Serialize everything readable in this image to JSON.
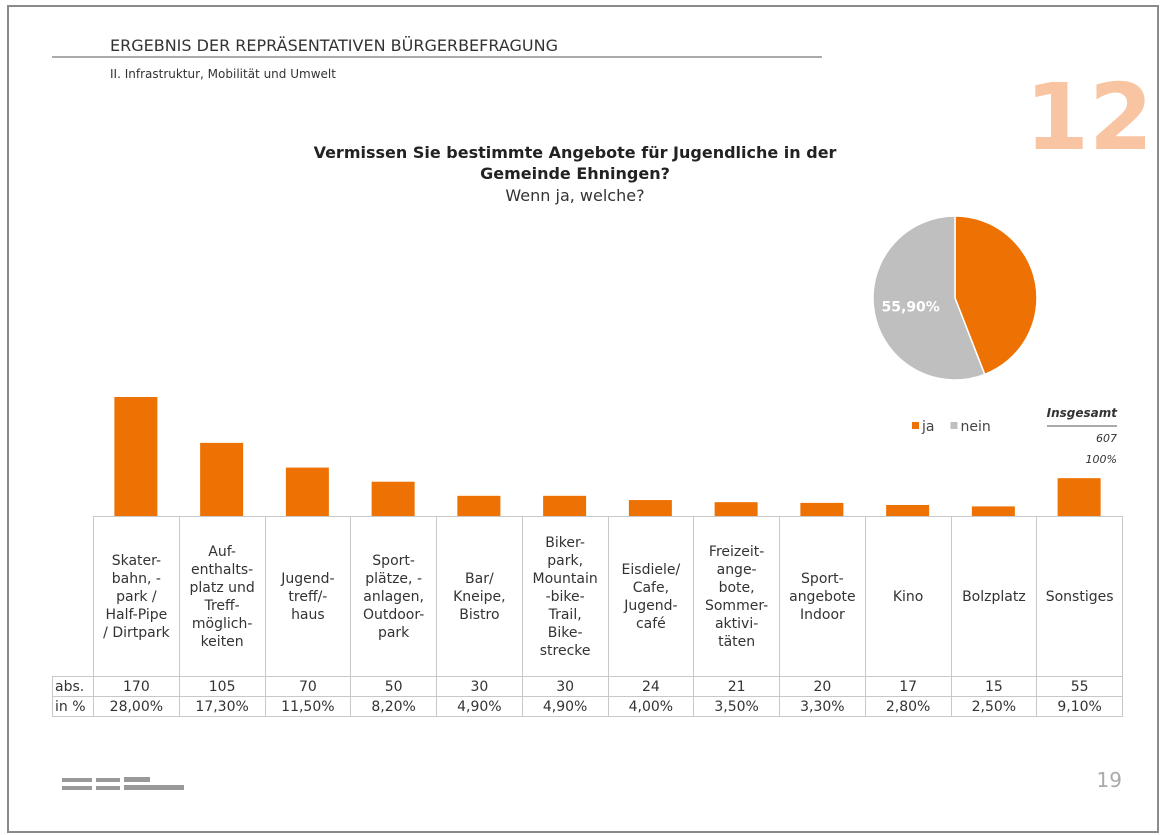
{
  "header": {
    "title": "ERGEBNIS DER REPRÄSENTATIVEN BÜRGERBEFRAGUNG",
    "subtitle": "II. Infrastruktur, Mobilität und Umwelt",
    "section_number": "12",
    "page_number": "19"
  },
  "chart_data": [
    {
      "type": "bar",
      "title": "Vermissen Sie bestimmte Angebote für Jugendliche in der Gemeinde Ehningen?",
      "subtitle": "Wenn ja, welche?",
      "categories": [
        "Skater-\nbahn, -\npark /\nHalf-Pipe\n/ Dirtpark",
        "Auf-\nenthalts-\nplatz und\nTreff-\nmöglich-\nkeiten",
        "Jugend-\ntreff/-\nhaus",
        "Sport-\nplätze, -\nanlagen,\nOutdoor-\npark",
        "Bar/\nKneipe,\nBistro",
        "Biker-\npark,\nMountain\n-bike-\nTrail,\nBike-\nstrecke",
        "Eisdiele/\nCafe,\nJugend-\ncafé",
        "Freizeit-\nange-\nbote,\nSommer-\naktivi-\ntäten",
        "Sport-\nangebote\nIndoor",
        "Kino",
        "Bolzplatz",
        "Sonstiges"
      ],
      "series": [
        {
          "name": "abs.",
          "color": "#ee7203",
          "values": [
            170,
            105,
            70,
            50,
            30,
            30,
            24,
            21,
            20,
            17,
            15,
            55
          ]
        },
        {
          "name": "in %",
          "values": [
            28.0,
            17.3,
            11.5,
            8.2,
            4.9,
            4.9,
            4.0,
            3.5,
            3.3,
            2.8,
            2.5,
            9.1
          ],
          "value_labels": [
            "28,00%",
            "17,30%",
            "11,50%",
            "8,20%",
            "4,90%",
            "4,90%",
            "4,00%",
            "3,50%",
            "3,30%",
            "2,80%",
            "2,50%",
            "9,10%"
          ]
        }
      ]
    },
    {
      "type": "pie",
      "categories": [
        "ja",
        "nein"
      ],
      "values": [
        44.1,
        55.9
      ],
      "value_labels": [
        null,
        "55,90%"
      ],
      "colors": [
        "#ee7203",
        "#bfbfbf"
      ],
      "total_title": "Insgesamt",
      "total_count": 607,
      "total_percent": "100%"
    }
  ]
}
